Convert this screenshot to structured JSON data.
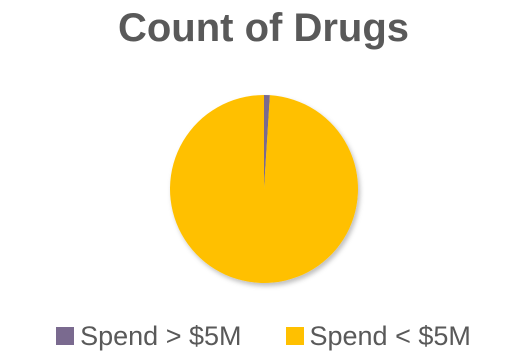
{
  "chart_data": {
    "type": "pie",
    "title": "Count of Drugs",
    "slices": [
      {
        "label": "Spend > $5M",
        "value": 1,
        "color": "#7a6a8f"
      },
      {
        "label": "Spend < $5M",
        "value": 99,
        "color": "#ffc000"
      }
    ],
    "legend_position": "bottom"
  }
}
